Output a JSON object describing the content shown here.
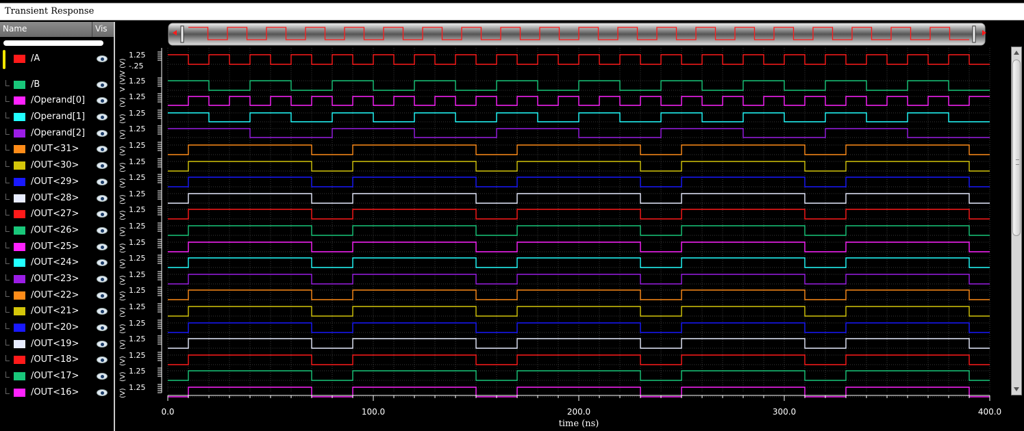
{
  "window": {
    "title": "Transient Response"
  },
  "header": {
    "name_label": "Name",
    "vis_label": "Vis"
  },
  "colors": {
    "red": "#ff1a1a",
    "green": "#19c77a",
    "magenta": "#ff22ff",
    "cyan": "#22ffff",
    "purple": "#9b1de6",
    "orange": "#ff8c19",
    "yellow": "#d4c60a",
    "blue": "#1919ff",
    "white": "#e8ecff"
  },
  "signals": [
    {
      "name": "/A",
      "color": "#ff1a1a",
      "visible_icon": "eye-icon",
      "ytick": "1.25",
      "ytick_low": "-.25",
      "unit_label": "V (V)"
    },
    {
      "name": "/B",
      "color": "#19c77a",
      "visible_icon": "eye-icon",
      "ytick": "1.25",
      "unit_label": "V (V)"
    },
    {
      "name": "/Operand[0]",
      "color": "#ff22ff",
      "visible_icon": "eye-icon",
      "ytick": "1.25",
      "unit_label": "(V)"
    },
    {
      "name": "/Operand[1]",
      "color": "#22ffff",
      "visible_icon": "eye-icon",
      "ytick": "1.25",
      "unit_label": "(V)"
    },
    {
      "name": "/Operand[2]",
      "color": "#9b1de6",
      "visible_icon": "eye-icon",
      "ytick": "1.25",
      "unit_label": "(V)"
    },
    {
      "name": "/OUT<31>",
      "color": "#ff8c19",
      "visible_icon": "eye-icon",
      "ytick": "1.25",
      "unit_label": "(V)"
    },
    {
      "name": "/OUT<30>",
      "color": "#d4c60a",
      "visible_icon": "eye-icon",
      "ytick": "1.25",
      "unit_label": "(V)"
    },
    {
      "name": "/OUT<29>",
      "color": "#1919ff",
      "visible_icon": "eye-icon",
      "ytick": "1.25",
      "unit_label": "(V)"
    },
    {
      "name": "/OUT<28>",
      "color": "#e8ecff",
      "visible_icon": "eye-icon",
      "ytick": "1.25",
      "unit_label": "(V)"
    },
    {
      "name": "/OUT<27>",
      "color": "#ff1a1a",
      "visible_icon": "eye-icon",
      "ytick": "1.25",
      "unit_label": "(V)"
    },
    {
      "name": "/OUT<26>",
      "color": "#19c77a",
      "visible_icon": "eye-icon",
      "ytick": "1.25",
      "unit_label": "(V)"
    },
    {
      "name": "/OUT<25>",
      "color": "#ff22ff",
      "visible_icon": "eye-icon",
      "ytick": "1.25",
      "unit_label": "(V)"
    },
    {
      "name": "/OUT<24>",
      "color": "#22ffff",
      "visible_icon": "eye-icon",
      "ytick": "1.25",
      "unit_label": "(V)"
    },
    {
      "name": "/OUT<23>",
      "color": "#9b1de6",
      "visible_icon": "eye-icon",
      "ytick": "1.25",
      "unit_label": "(V)"
    },
    {
      "name": "/OUT<22>",
      "color": "#ff8c19",
      "visible_icon": "eye-icon",
      "ytick": "1.25",
      "unit_label": "(V)"
    },
    {
      "name": "/OUT<21>",
      "color": "#d4c60a",
      "visible_icon": "eye-icon",
      "ytick": "1.25",
      "unit_label": "(V)"
    },
    {
      "name": "/OUT<20>",
      "color": "#1919ff",
      "visible_icon": "eye-icon",
      "ytick": "1.25",
      "unit_label": "(V)"
    },
    {
      "name": "/OUT<19>",
      "color": "#e8ecff",
      "visible_icon": "eye-icon",
      "ytick": "1.25",
      "unit_label": "(V)"
    },
    {
      "name": "/OUT<18>",
      "color": "#ff1a1a",
      "visible_icon": "eye-icon",
      "ytick": "1.25",
      "unit_label": "(V)"
    },
    {
      "name": "/OUT<17>",
      "color": "#19c77a",
      "visible_icon": "eye-icon",
      "ytick": "1.25",
      "unit_label": "(V)"
    },
    {
      "name": "/OUT<16>",
      "color": "#ff22ff",
      "visible_icon": "eye-icon",
      "ytick": "1.25",
      "unit_label": "(V)"
    }
  ],
  "plot": {
    "time_axis": {
      "label": "time (ns)",
      "ticks": [
        "0.0",
        "100.0",
        "200.0",
        "300.0",
        "400.0"
      ],
      "range": [
        0,
        400
      ]
    }
  },
  "waveforms": {
    "time_unit": "ns",
    "A_edges": [
      0,
      10,
      20,
      30,
      40,
      50,
      60,
      70,
      80,
      90,
      100,
      110,
      120,
      130,
      140,
      150,
      160,
      170,
      180,
      190,
      200,
      210,
      220,
      230,
      240,
      250,
      260,
      270,
      280,
      290,
      300,
      310,
      320,
      330,
      340,
      350,
      360,
      370,
      380,
      390
    ],
    "A_start": 1,
    "B_edges": [
      0,
      20,
      40,
      60,
      80,
      100,
      120,
      140,
      160,
      180,
      200,
      220,
      240,
      260,
      280,
      300,
      320,
      340,
      360,
      380
    ],
    "B_start": 1,
    "Op0_edges": [
      0,
      10,
      20,
      30,
      40,
      50,
      60,
      70,
      80,
      90,
      100,
      110,
      120,
      130,
      140,
      150,
      160,
      170,
      180,
      190,
      200,
      210,
      220,
      230,
      240,
      250,
      260,
      270,
      280,
      290,
      300,
      310,
      320,
      330,
      340,
      350,
      360,
      370,
      380,
      390
    ],
    "Op0_start": 0,
    "Op1_edges": [
      0,
      20,
      40,
      60,
      80,
      100,
      120,
      140,
      160,
      180,
      200,
      220,
      240,
      260,
      280,
      300,
      320,
      340,
      360,
      380
    ],
    "Op1_start": 1,
    "Op2_edges": [
      0,
      40,
      80,
      120,
      160,
      200,
      240,
      280,
      320,
      360
    ],
    "Op2_start": 1,
    "OUT_edges": [
      0,
      10,
      70,
      90,
      150,
      170,
      230,
      250,
      310,
      330,
      390
    ],
    "OUT_start": 0,
    "end_time": 400
  },
  "overview": {
    "color": "#ff1a1a"
  }
}
